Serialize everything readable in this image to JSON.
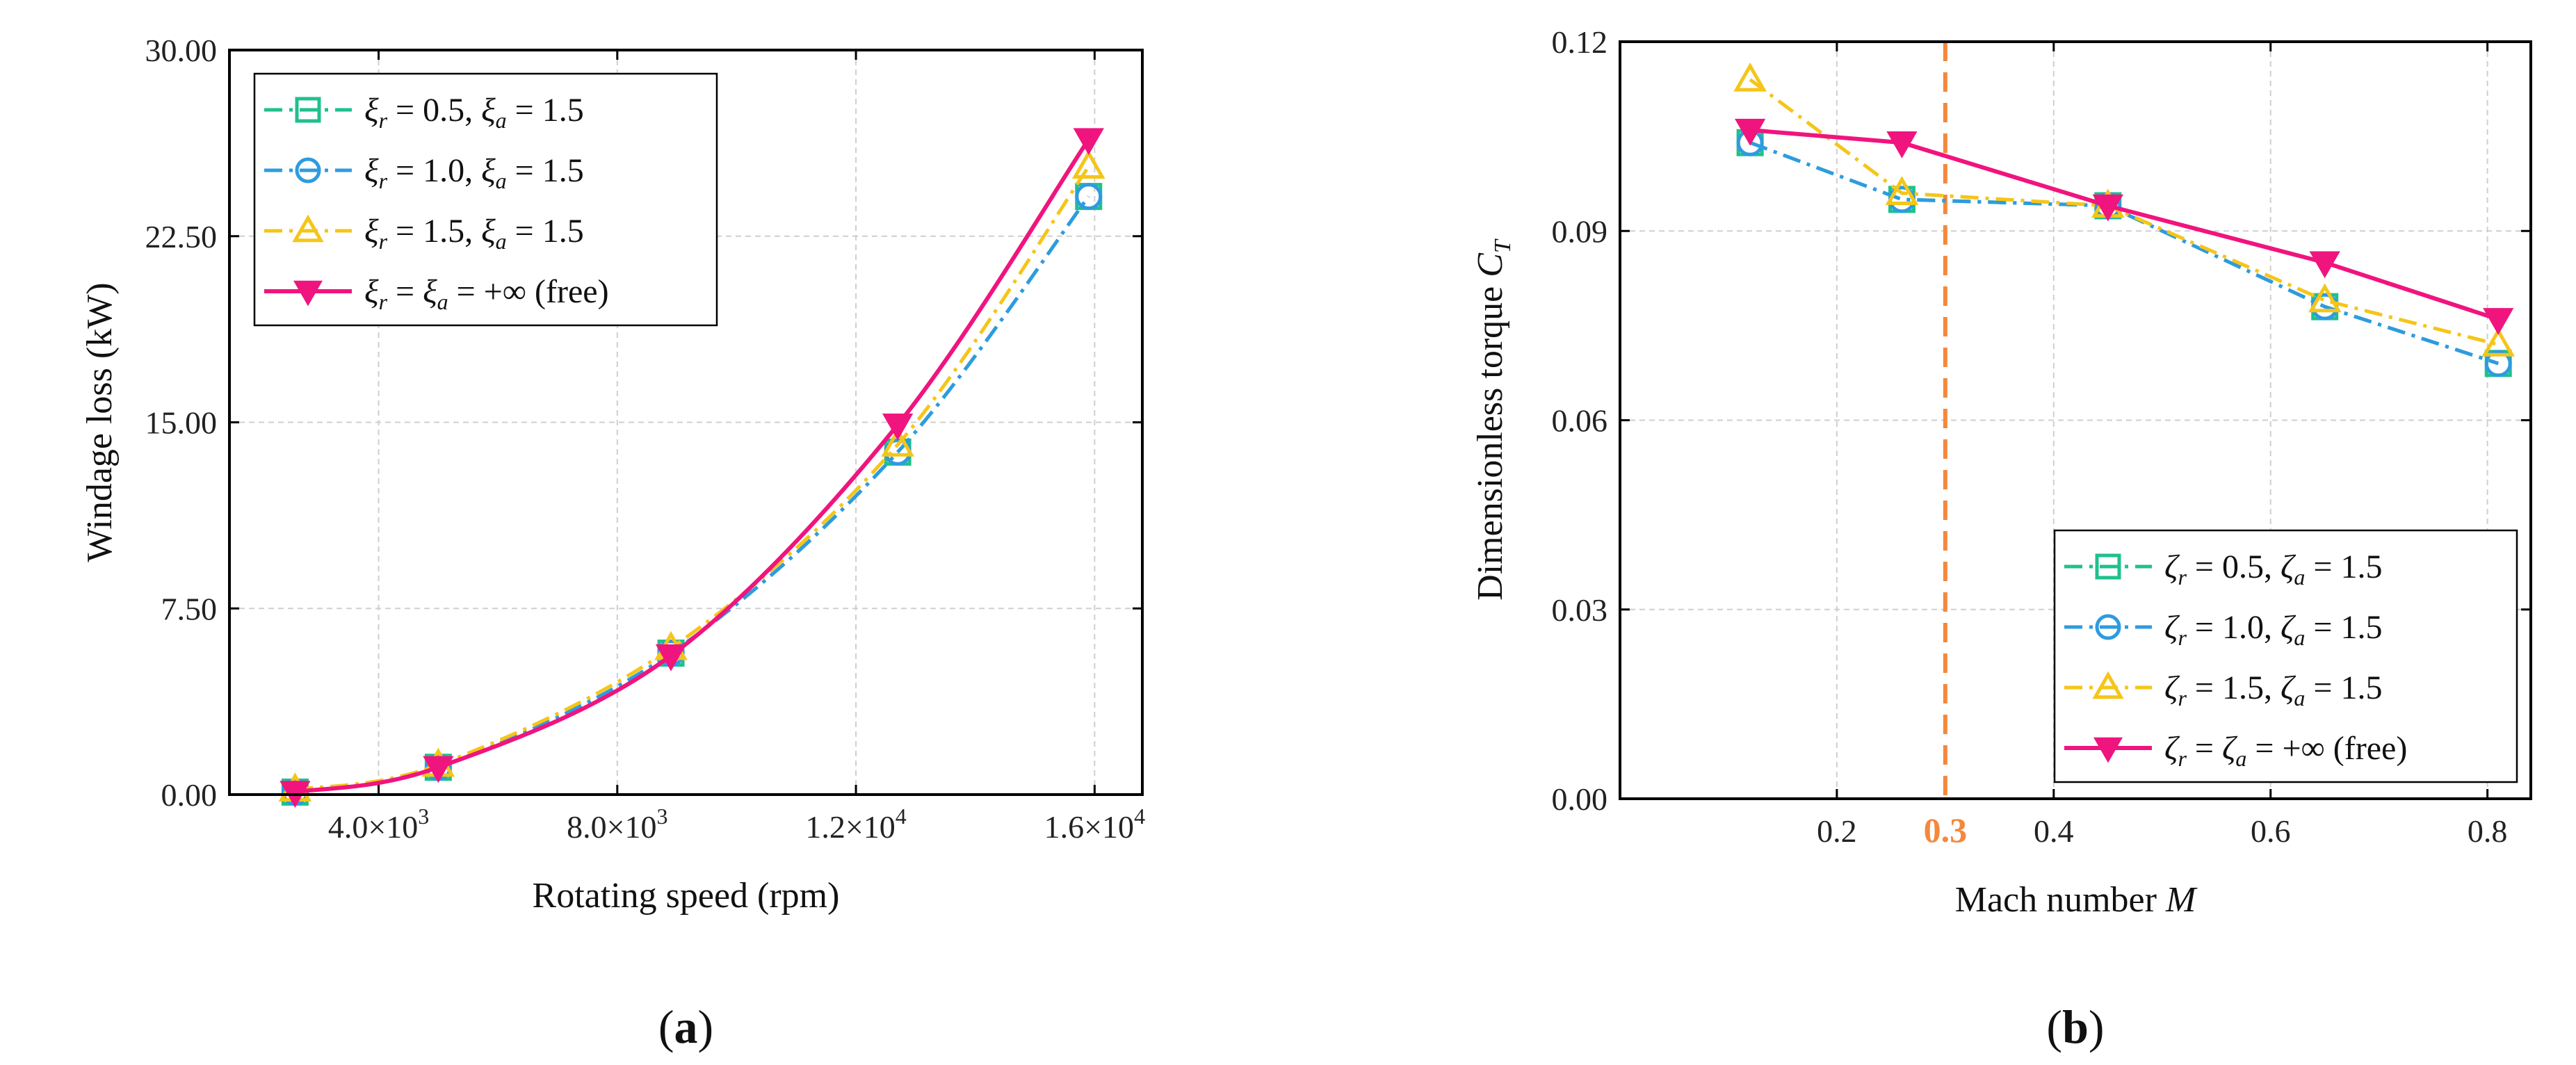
{
  "chart_data": [
    {
      "type": "line",
      "panel_label": "(a)",
      "panel_letter": "a",
      "xlabel": "Rotating speed (rpm)",
      "ylabel": "Windage loss (kW)",
      "xlim": [
        1500,
        16800
      ],
      "ylim": [
        0,
        30
      ],
      "xticks": [
        4000,
        8000,
        12000,
        16000
      ],
      "xtick_labels": [
        {
          "mant": "4.0×10",
          "exp": "3"
        },
        {
          "mant": "8.0×10",
          "exp": "3"
        },
        {
          "mant": "1.2×10",
          "exp": "4"
        },
        {
          "mant": "1.6×10",
          "exp": "4"
        }
      ],
      "yticks": [
        0,
        7.5,
        15,
        22.5,
        30
      ],
      "ytick_labels": [
        "0.00",
        "7.50",
        "15.00",
        "22.50",
        "30.00"
      ],
      "grid": true,
      "legend_position": "top-left",
      "series": [
        {
          "name": "ξr = 0.5, ξa = 1.5",
          "sym": "ξ",
          "r_label": " = 0.5, ",
          "a_label": " = 1.5",
          "x": [
            2600,
            5000,
            8900,
            12700,
            15900
          ],
          "values": [
            0.1,
            1.1,
            5.7,
            13.8,
            24.1
          ],
          "color": "#1fc08e",
          "marker": "square",
          "dash": "dashdot",
          "smooth": true
        },
        {
          "name": "ξr = 1.0, ξa = 1.5",
          "sym": "ξ",
          "r_label": " = 1.0, ",
          "a_label": " = 1.5",
          "x": [
            2600,
            5000,
            8900,
            12700,
            15900
          ],
          "values": [
            0.1,
            1.1,
            5.7,
            13.8,
            24.1
          ],
          "color": "#2e9be0",
          "marker": "circle",
          "dash": "dashdot",
          "smooth": true
        },
        {
          "name": "ξr = 1.5, ξa = 1.5",
          "sym": "ξ",
          "r_label": " = 1.5, ",
          "a_label": " = 1.5",
          "x": [
            2600,
            5000,
            8900,
            12700,
            15900
          ],
          "values": [
            0.2,
            1.2,
            5.9,
            14.1,
            25.3
          ],
          "color": "#f5c518",
          "marker": "triangle-up",
          "dash": "dashdot",
          "smooth": true
        },
        {
          "name": "ξr = ξa = +∞ (free)",
          "sym": "ξ",
          "r_label": " = ",
          "a_label": " = +∞ (free)",
          "x": [
            2600,
            5000,
            8900,
            12700,
            15900
          ],
          "values": [
            0.1,
            1.1,
            5.6,
            14.9,
            26.4
          ],
          "color": "#f0147e",
          "marker": "triangle-down",
          "dash": "solid",
          "smooth": true
        }
      ]
    },
    {
      "type": "line",
      "panel_label": "(b)",
      "panel_letter": "b",
      "xlabel": "Mach number M",
      "xlabel_text": "Mach number ",
      "xlabel_var": "M",
      "ylabel": "Dimensionless torque CT",
      "ylabel_text": "Dimensionless torque ",
      "ylabel_var": "C",
      "ylabel_sub": "T",
      "xlim": [
        0.0,
        0.84
      ],
      "ylim": [
        0,
        0.12
      ],
      "xticks": [
        0.2,
        0.4,
        0.6,
        0.8
      ],
      "xtick_labels": [
        "0.2",
        "0.4",
        "0.6",
        "0.8"
      ],
      "yticks": [
        0,
        0.03,
        0.06,
        0.09,
        0.12
      ],
      "ytick_labels": [
        "0.00",
        "0.03",
        "0.06",
        "0.09",
        "0.12"
      ],
      "grid": true,
      "legend_position": "bottom-right",
      "annotation": {
        "x": 0.3,
        "label": "0.3",
        "color": "#f5883c"
      },
      "series": [
        {
          "name": "ζr = 0.5, ζa = 1.5",
          "sym": "ζ",
          "r_label": " = 0.5, ",
          "a_label": " = 1.5",
          "x": [
            0.12,
            0.26,
            0.45,
            0.65,
            0.81
          ],
          "values": [
            0.104,
            0.095,
            0.094,
            0.078,
            0.069
          ],
          "color": "#1fc08e",
          "marker": "square",
          "dash": "dashdot",
          "smooth": false
        },
        {
          "name": "ζr = 1.0, ζa = 1.5",
          "sym": "ζ",
          "r_label": " = 1.0, ",
          "a_label": " = 1.5",
          "x": [
            0.12,
            0.26,
            0.45,
            0.65,
            0.81
          ],
          "values": [
            0.104,
            0.095,
            0.094,
            0.078,
            0.069
          ],
          "color": "#2e9be0",
          "marker": "circle",
          "dash": "dashdot",
          "smooth": false
        },
        {
          "name": "ζr = 1.5, ζa = 1.5",
          "sym": "ζ",
          "r_label": " = 1.5, ",
          "a_label": " = 1.5",
          "x": [
            0.12,
            0.26,
            0.45,
            0.65,
            0.81
          ],
          "values": [
            0.114,
            0.096,
            0.094,
            0.079,
            0.072
          ],
          "color": "#f5c518",
          "marker": "triangle-up",
          "dash": "dashdot",
          "smooth": false
        },
        {
          "name": "ζr = ζa = +∞ (free)",
          "sym": "ζ",
          "r_label": " = ",
          "a_label": " = +∞ (free)",
          "x": [
            0.12,
            0.26,
            0.45,
            0.65,
            0.81
          ],
          "values": [
            0.106,
            0.104,
            0.094,
            0.085,
            0.076
          ],
          "color": "#f0147e",
          "marker": "triangle-down",
          "dash": "solid",
          "smooth": false
        }
      ]
    }
  ]
}
